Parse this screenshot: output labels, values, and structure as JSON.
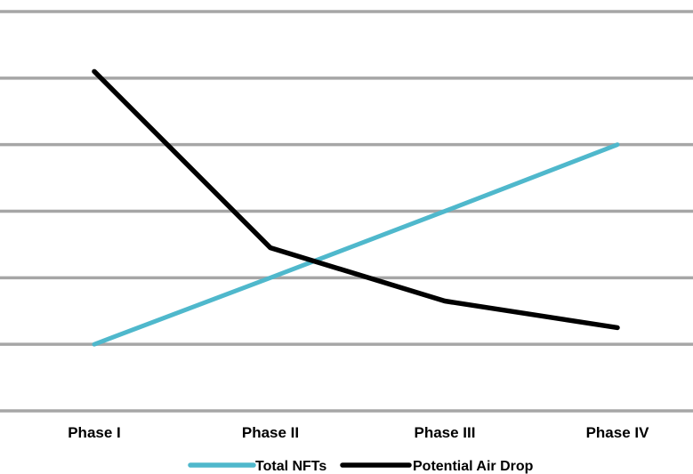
{
  "chart_data": {
    "type": "line",
    "categories": [
      "Phase I",
      "Phase II",
      "Phase III",
      "Phase IV"
    ],
    "series": [
      {
        "name": "Total NFTs",
        "values": [
          1,
          2,
          3,
          4
        ],
        "color": "#4fb8cc"
      },
      {
        "name": "Potential Air Drop",
        "values": [
          5.1,
          2.45,
          1.65,
          1.25
        ],
        "color": "#000000"
      }
    ],
    "ylim": [
      0,
      6
    ],
    "grid": true,
    "grid_color": "#a6a6a6",
    "legend_position": "bottom",
    "title": "",
    "xlabel": "",
    "ylabel": ""
  }
}
